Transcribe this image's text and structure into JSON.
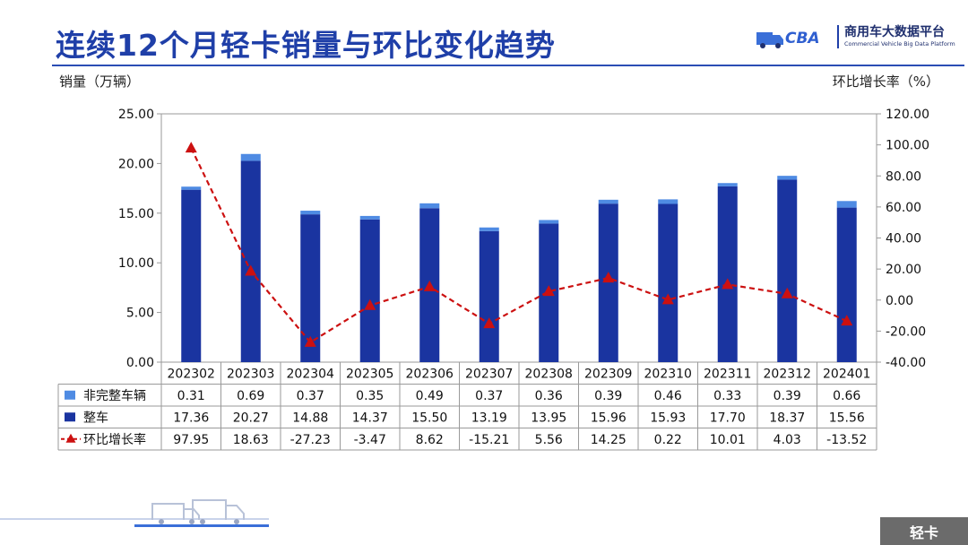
{
  "page": {
    "title": "连续12个月轻卡销量与环比变化趋势",
    "section_tag": "轻卡"
  },
  "logo": {
    "mark_text": "CBA",
    "name_cn": "商用车大数据平台",
    "name_en": "Commercial Vehicle Big Data Platform"
  },
  "colors": {
    "title": "#1f3fa8",
    "whole_vehicle": "#1a34a0",
    "incomplete_vehicle": "#4f8be3",
    "growth_line": "#cc1010"
  },
  "chart_data": {
    "type": "bar",
    "stacked": true,
    "ylabel_left": "销量（万辆）",
    "ylabel_right": "环比增长率（%）",
    "ylim_left": [
      0,
      25
    ],
    "yticks_left": [
      "0.00",
      "5.00",
      "10.00",
      "15.00",
      "20.00",
      "25.00"
    ],
    "ylim_right": [
      -40,
      120
    ],
    "yticks_right": [
      "-40.00",
      "-20.00",
      "0.00",
      "20.00",
      "40.00",
      "60.00",
      "80.00",
      "100.00",
      "120.00"
    ],
    "categories": [
      "202302",
      "202303",
      "202304",
      "202305",
      "202306",
      "202307",
      "202308",
      "202309",
      "202310",
      "202311",
      "202312",
      "202401"
    ],
    "series": [
      {
        "name": "非完整车辆",
        "axis": "left",
        "values": [
          0.31,
          0.69,
          0.37,
          0.35,
          0.49,
          0.37,
          0.36,
          0.39,
          0.46,
          0.33,
          0.39,
          0.66
        ],
        "labels": [
          "0.31",
          "0.69",
          "0.37",
          "0.35",
          "0.49",
          "0.37",
          "0.36",
          "0.39",
          "0.46",
          "0.33",
          "0.39",
          "0.66"
        ]
      },
      {
        "name": "整车",
        "axis": "left",
        "values": [
          17.36,
          20.27,
          14.88,
          14.37,
          15.5,
          13.19,
          13.95,
          15.96,
          15.93,
          17.7,
          18.37,
          15.56
        ],
        "labels": [
          "17.36",
          "20.27",
          "14.88",
          "14.37",
          "15.50",
          "13.19",
          "13.95",
          "15.96",
          "15.93",
          "17.70",
          "18.37",
          "15.56"
        ]
      },
      {
        "name": "环比增长率",
        "axis": "right",
        "type": "line",
        "values": [
          97.95,
          18.63,
          -27.23,
          -3.47,
          8.62,
          -15.21,
          5.56,
          14.25,
          0.22,
          10.01,
          4.03,
          -13.52
        ],
        "labels": [
          "97.95",
          "18.63",
          "-27.23",
          "-3.47",
          "8.62",
          "-15.21",
          "5.56",
          "14.25",
          "0.22",
          "10.01",
          "4.03",
          "-13.52"
        ]
      }
    ],
    "data_table": true,
    "grid": false
  }
}
